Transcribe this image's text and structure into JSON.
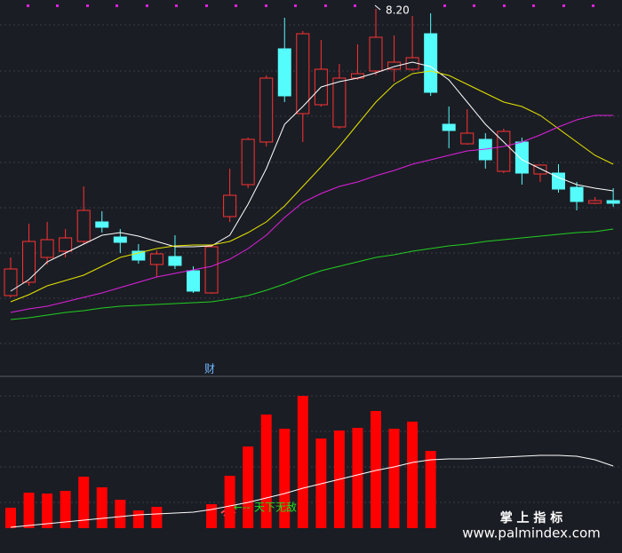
{
  "chart_data": [
    {
      "type": "candlestick",
      "ylim": [
        4.1,
        8.3
      ],
      "up_color": "#ff3232",
      "down_color": "#54fcfc",
      "open": [
        4.97,
        5.12,
        5.4,
        5.47,
        5.58,
        5.8,
        5.63,
        5.47,
        5.32,
        5.41,
        5.25,
        5.0,
        5.86,
        6.22,
        6.7,
        7.75,
        7.02,
        7.12,
        6.87,
        7.42,
        7.5,
        7.52,
        7.52,
        7.92,
        6.9,
        6.68,
        6.73,
        6.37,
        6.7,
        6.34,
        6.35,
        6.19,
        6.01,
        6.04
      ],
      "close": [
        5.27,
        5.58,
        5.6,
        5.62,
        5.93,
        5.74,
        5.57,
        5.37,
        5.44,
        5.31,
        5.02,
        5.52,
        6.1,
        6.73,
        7.42,
        7.22,
        7.92,
        7.52,
        7.42,
        7.47,
        7.88,
        7.6,
        7.65,
        7.26,
        6.83,
        6.8,
        6.5,
        6.82,
        6.35,
        6.44,
        6.17,
        6.03,
        6.04,
        6.01
      ],
      "high": [
        5.4,
        5.78,
        5.8,
        5.72,
        6.2,
        5.92,
        5.72,
        5.55,
        5.48,
        5.65,
        5.3,
        5.54,
        6.4,
        6.75,
        7.45,
        8.1,
        7.95,
        7.85,
        7.58,
        7.8,
        8.2,
        7.9,
        8.12,
        8.15,
        7.1,
        7.07,
        6.8,
        6.85,
        6.75,
        6.45,
        6.45,
        6.25,
        6.08,
        6.18
      ],
      "low": [
        4.95,
        5.08,
        5.32,
        5.4,
        5.55,
        5.68,
        5.45,
        5.33,
        5.18,
        5.27,
        5.0,
        4.99,
        5.8,
        6.18,
        6.65,
        7.15,
        6.7,
        7.1,
        6.85,
        7.4,
        7.45,
        7.38,
        7.5,
        7.22,
        6.63,
        6.67,
        6.4,
        6.35,
        6.22,
        6.25,
        6.13,
        5.93,
        6.0,
        5.97
      ],
      "high_label": "8.20",
      "series": [
        {
          "color": "#ffffff",
          "values": [
            5.02,
            5.15,
            5.35,
            5.45,
            5.55,
            5.65,
            5.68,
            5.64,
            5.58,
            5.52,
            5.52,
            5.53,
            5.65,
            6.0,
            6.4,
            6.9,
            7.1,
            7.32,
            7.38,
            7.42,
            7.48,
            7.55,
            7.6,
            7.55,
            7.4,
            7.15,
            6.9,
            6.7,
            6.5,
            6.4,
            6.3,
            6.22,
            6.18,
            6.15
          ]
        },
        {
          "color": "#e6e600",
          "values": [
            4.9,
            4.98,
            5.08,
            5.14,
            5.2,
            5.3,
            5.4,
            5.45,
            5.5,
            5.53,
            5.54,
            5.54,
            5.58,
            5.68,
            5.8,
            5.98,
            6.2,
            6.42,
            6.65,
            6.9,
            7.15,
            7.35,
            7.47,
            7.5,
            7.45,
            7.35,
            7.25,
            7.15,
            7.1,
            7.0,
            6.85,
            6.7,
            6.55,
            6.45
          ]
        },
        {
          "color": "#e020e0",
          "values": [
            4.78,
            4.82,
            4.85,
            4.9,
            4.95,
            5.0,
            5.06,
            5.12,
            5.18,
            5.22,
            5.26,
            5.3,
            5.38,
            5.5,
            5.65,
            5.85,
            6.02,
            6.12,
            6.2,
            6.25,
            6.32,
            6.38,
            6.45,
            6.5,
            6.55,
            6.6,
            6.62,
            6.65,
            6.7,
            6.78,
            6.87,
            6.95,
            7.0,
            7.0
          ]
        },
        {
          "color": "#20d020",
          "values": [
            4.7,
            4.72,
            4.75,
            4.78,
            4.8,
            4.83,
            4.85,
            4.86,
            4.87,
            4.88,
            4.89,
            4.9,
            4.93,
            4.97,
            5.03,
            5.1,
            5.18,
            5.25,
            5.3,
            5.35,
            5.4,
            5.43,
            5.47,
            5.5,
            5.53,
            5.55,
            5.58,
            5.6,
            5.62,
            5.64,
            5.66,
            5.68,
            5.69,
            5.72
          ]
        }
      ]
    },
    {
      "type": "bar",
      "title": "财",
      "color": "#ff0000",
      "ylim": [
        0,
        160
      ],
      "values": [
        23,
        40,
        39,
        42,
        58,
        46,
        32,
        20,
        24,
        null,
        null,
        27,
        59,
        92,
        128,
        112,
        149,
        101,
        110,
        113,
        132,
        112,
        120,
        87,
        null,
        null,
        null,
        null,
        null,
        null,
        null,
        null,
        null,
        null
      ],
      "series": [
        {
          "color": "#ffffff",
          "values": [
            1,
            3,
            5,
            7,
            9,
            11,
            13,
            15,
            16,
            17,
            18,
            21,
            25,
            29,
            34,
            39,
            45,
            50,
            55,
            60,
            65,
            69,
            74,
            77,
            78,
            78,
            79,
            80,
            81,
            82,
            82,
            81,
            77,
            70
          ]
        }
      ],
      "annotation": "天下无敌"
    }
  ],
  "watermark": {
    "title": "掌 上 指 标",
    "url": "www.palmindex.com"
  }
}
